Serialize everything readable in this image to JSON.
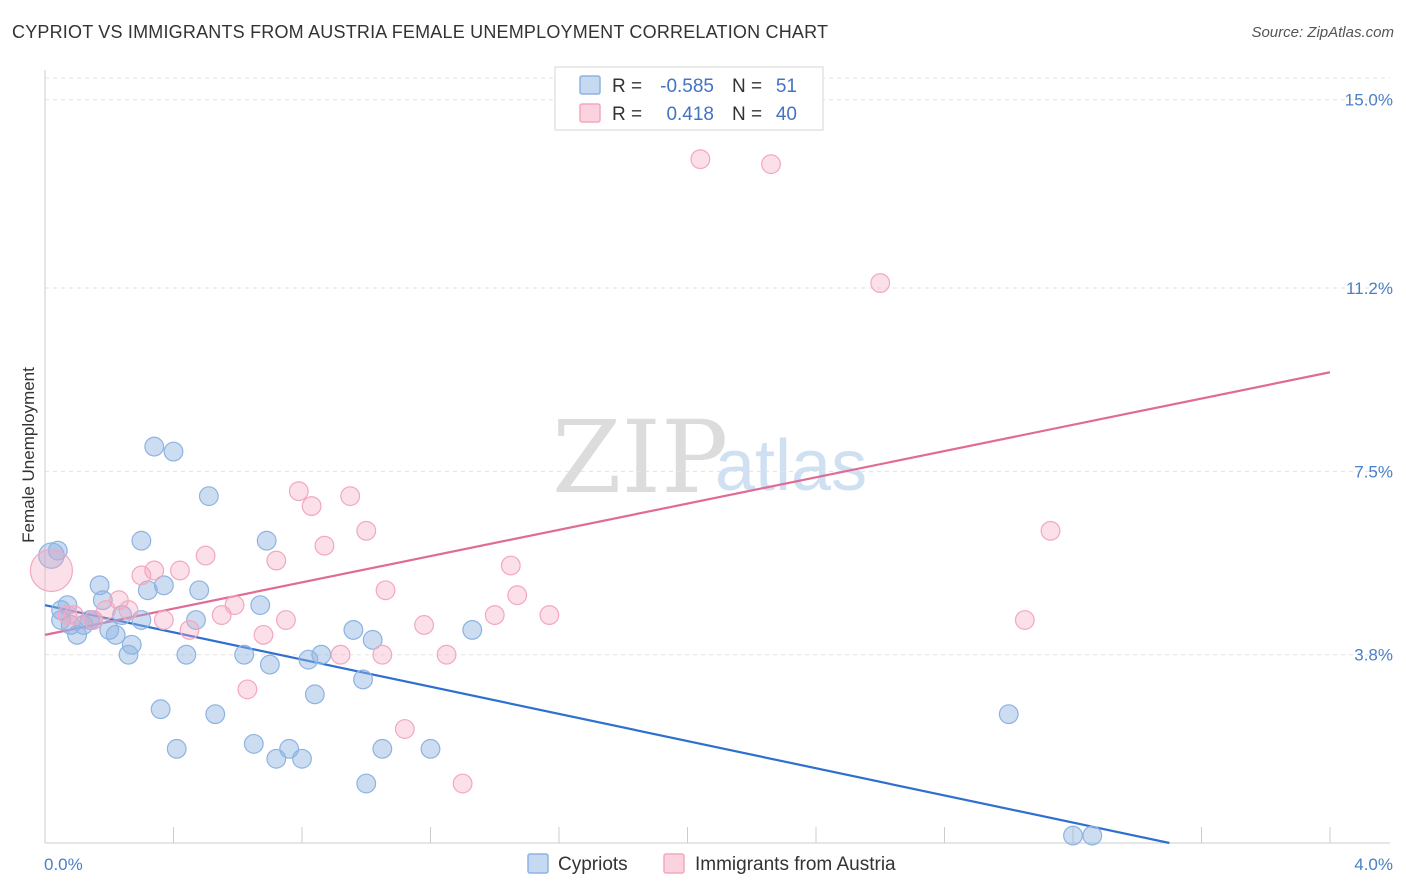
{
  "header": {
    "title": "CYPRIOT VS IMMIGRANTS FROM AUSTRIA FEMALE UNEMPLOYMENT CORRELATION CHART",
    "source": "Source: ZipAtlas.com"
  },
  "watermark": {
    "zip": "ZIP",
    "atlas": "atlas"
  },
  "legend": {
    "rows": [
      {
        "r_label": "R =",
        "r_value": "-0.585",
        "n_label": "N =",
        "n_value": "51",
        "color": "#8db3e2"
      },
      {
        "r_label": "R =",
        "r_value": "0.418",
        "n_label": "N =",
        "n_value": "40",
        "color": "#f4a7bf"
      }
    ]
  },
  "bottom_legend": [
    {
      "label": "Cypriots",
      "color": "#8db3e2"
    },
    {
      "label": "Immigrants from Austria",
      "color": "#f4a7bf"
    }
  ],
  "chart_data": {
    "type": "scatter",
    "title": "CYPRIOT VS IMMIGRANTS FROM AUSTRIA FEMALE UNEMPLOYMENT CORRELATION CHART",
    "xlabel": "",
    "ylabel": "Female Unemployment",
    "xlim": [
      0,
      4.0
    ],
    "ylim": [
      0,
      15.6
    ],
    "x_tick_labels": [
      "0.0%",
      "4.0%"
    ],
    "y_ticks": [
      3.8,
      7.5,
      11.2,
      15.0
    ],
    "y_tick_labels": [
      "3.8%",
      "7.5%",
      "11.2%",
      "15.0%"
    ],
    "series": [
      {
        "name": "Cypriots",
        "color": "#8db3e2",
        "line_color": "#2f6fcf",
        "trend": {
          "x0": 0.0,
          "y0": 4.8,
          "x1": 3.5,
          "y1": 0.0
        },
        "points": [
          [
            0.02,
            5.8,
            14
          ],
          [
            0.04,
            5.9,
            10
          ],
          [
            0.05,
            4.7,
            10
          ],
          [
            0.05,
            4.5,
            10
          ],
          [
            0.07,
            4.8,
            10
          ],
          [
            0.08,
            4.4,
            10
          ],
          [
            0.1,
            4.2,
            10
          ],
          [
            0.12,
            4.4,
            10
          ],
          [
            0.15,
            4.5,
            10
          ],
          [
            0.17,
            5.2,
            10
          ],
          [
            0.18,
            4.9,
            10
          ],
          [
            0.2,
            4.3,
            10
          ],
          [
            0.22,
            4.2,
            10
          ],
          [
            0.24,
            4.6,
            10
          ],
          [
            0.26,
            3.8,
            10
          ],
          [
            0.27,
            4.0,
            10
          ],
          [
            0.3,
            4.5,
            10
          ],
          [
            0.3,
            6.1,
            10
          ],
          [
            0.32,
            5.1,
            10
          ],
          [
            0.34,
            8.0,
            10
          ],
          [
            0.36,
            2.7,
            10
          ],
          [
            0.37,
            5.2,
            10
          ],
          [
            0.4,
            7.9,
            10
          ],
          [
            0.41,
            1.9,
            10
          ],
          [
            0.44,
            3.8,
            10
          ],
          [
            0.47,
            4.5,
            10
          ],
          [
            0.48,
            5.1,
            10
          ],
          [
            0.51,
            7.0,
            10
          ],
          [
            0.53,
            2.6,
            10
          ],
          [
            0.62,
            3.8,
            10
          ],
          [
            0.65,
            2.0,
            10
          ],
          [
            0.67,
            4.8,
            10
          ],
          [
            0.69,
            6.1,
            10
          ],
          [
            0.7,
            3.6,
            10
          ],
          [
            0.72,
            1.7,
            10
          ],
          [
            0.76,
            1.9,
            10
          ],
          [
            0.8,
            1.7,
            10
          ],
          [
            0.82,
            3.7,
            10
          ],
          [
            0.84,
            3.0,
            10
          ],
          [
            0.86,
            3.8,
            10
          ],
          [
            0.96,
            4.3,
            10
          ],
          [
            0.99,
            3.3,
            10
          ],
          [
            1.0,
            1.2,
            10
          ],
          [
            1.02,
            4.1,
            10
          ],
          [
            1.05,
            1.9,
            10
          ],
          [
            1.2,
            1.9,
            10
          ],
          [
            1.33,
            4.3,
            10
          ],
          [
            3.0,
            2.6,
            10
          ],
          [
            3.2,
            0.15,
            10
          ],
          [
            3.26,
            0.15,
            10
          ],
          [
            0.14,
            4.5,
            10
          ]
        ]
      },
      {
        "name": "Immigrants from Austria",
        "color": "#f4a7bf",
        "line_color": "#e06b96",
        "trend": {
          "x0": 0.0,
          "y0": 4.2,
          "x1": 4.0,
          "y1": 9.5
        },
        "points": [
          [
            0.02,
            5.5,
            24
          ],
          [
            0.09,
            4.6,
            10
          ],
          [
            0.15,
            4.5,
            10
          ],
          [
            0.19,
            4.7,
            10
          ],
          [
            0.23,
            4.9,
            10
          ],
          [
            0.26,
            4.7,
            10
          ],
          [
            0.3,
            5.4,
            10
          ],
          [
            0.34,
            5.5,
            10
          ],
          [
            0.37,
            4.5,
            10
          ],
          [
            0.42,
            5.5,
            10
          ],
          [
            0.45,
            4.3,
            10
          ],
          [
            0.5,
            5.8,
            10
          ],
          [
            0.55,
            4.6,
            10
          ],
          [
            0.59,
            4.8,
            10
          ],
          [
            0.63,
            3.1,
            10
          ],
          [
            0.68,
            4.2,
            10
          ],
          [
            0.72,
            5.7,
            10
          ],
          [
            0.75,
            4.5,
            10
          ],
          [
            0.79,
            7.1,
            10
          ],
          [
            0.83,
            6.8,
            10
          ],
          [
            0.87,
            6.0,
            10
          ],
          [
            0.92,
            3.8,
            10
          ],
          [
            0.95,
            7.0,
            10
          ],
          [
            1.0,
            6.3,
            10
          ],
          [
            1.05,
            3.8,
            10
          ],
          [
            1.06,
            5.1,
            10
          ],
          [
            1.12,
            2.3,
            10
          ],
          [
            1.18,
            4.4,
            10
          ],
          [
            1.25,
            3.8,
            10
          ],
          [
            1.3,
            1.2,
            10
          ],
          [
            1.4,
            4.6,
            10
          ],
          [
            1.45,
            5.6,
            10
          ],
          [
            1.47,
            5.0,
            10
          ],
          [
            1.57,
            4.6,
            10
          ],
          [
            2.04,
            13.8,
            10
          ],
          [
            2.26,
            13.7,
            10
          ],
          [
            2.6,
            11.3,
            10
          ],
          [
            3.05,
            4.5,
            10
          ],
          [
            3.13,
            6.3,
            10
          ],
          [
            0.07,
            4.6,
            10
          ]
        ]
      }
    ]
  }
}
